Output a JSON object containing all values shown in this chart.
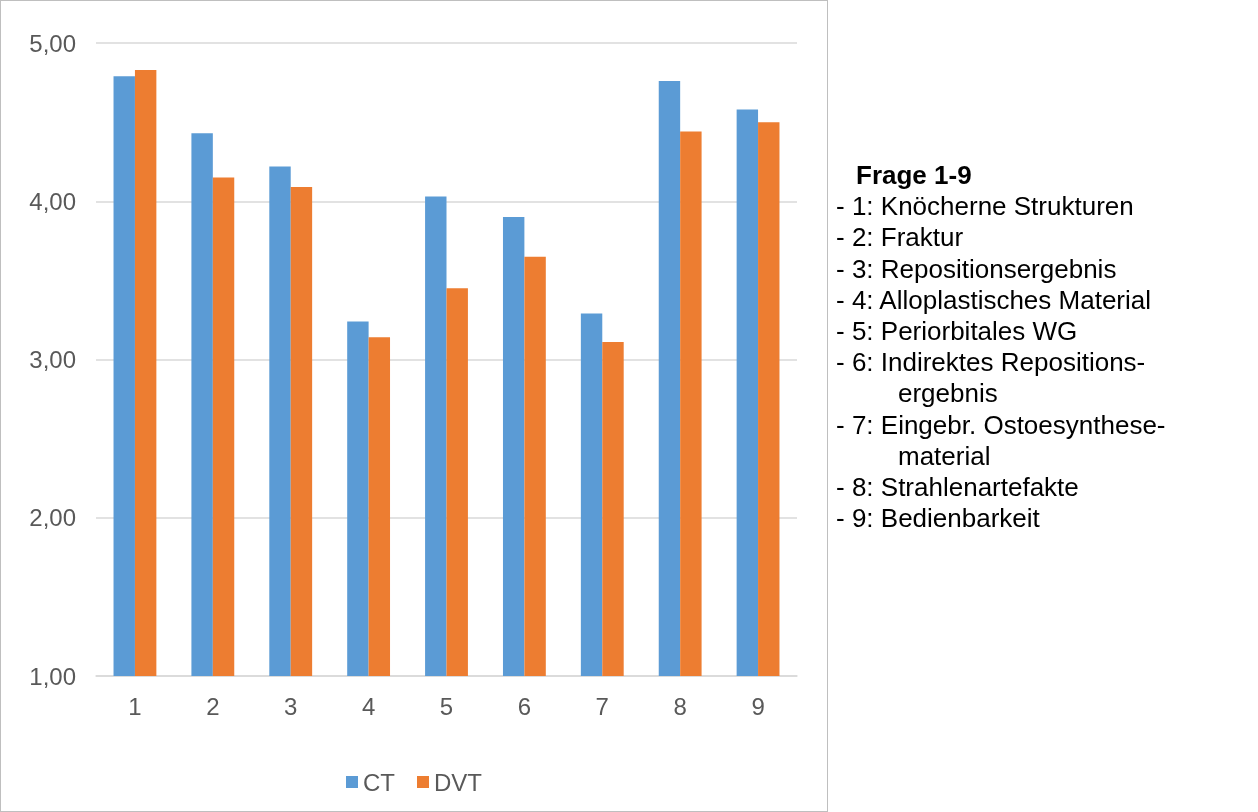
{
  "chart_data": {
    "type": "bar",
    "categories": [
      "1",
      "2",
      "3",
      "4",
      "5",
      "6",
      "7",
      "8",
      "9"
    ],
    "series": [
      {
        "name": "CT",
        "color": "#5b9bd5",
        "values": [
          4.79,
          4.43,
          4.22,
          3.24,
          4.03,
          3.9,
          3.29,
          4.76,
          4.58
        ]
      },
      {
        "name": "DVT",
        "color": "#ed7d31",
        "values": [
          4.83,
          4.15,
          4.09,
          3.14,
          3.45,
          3.65,
          3.11,
          4.44,
          4.5
        ]
      }
    ],
    "ylim": [
      1,
      5
    ],
    "yticks": [
      {
        "value": 1,
        "label": "1,00"
      },
      {
        "value": 2,
        "label": "2,00"
      },
      {
        "value": 3,
        "label": "3,00"
      },
      {
        "value": 4,
        "label": "4,00"
      },
      {
        "value": 5,
        "label": "5,00"
      }
    ],
    "grid": "y",
    "legend": "bottom",
    "annotations": [
      "Frage 1-9",
      "- 1: Knöcherne Strukturen",
      "- 2: Fraktur",
      "- 3: Repositionsergebnis",
      "- 4: Alloplastisches Material",
      "- 5: Periorbitales WG",
      "- 6: Indirektes Repositions-\nergebnis",
      "- 7: Eingebr. Ostoesynthese-\nmaterial",
      "- 8: Strahlenartefakte",
      "- 9: Bedienbarkeit"
    ]
  }
}
